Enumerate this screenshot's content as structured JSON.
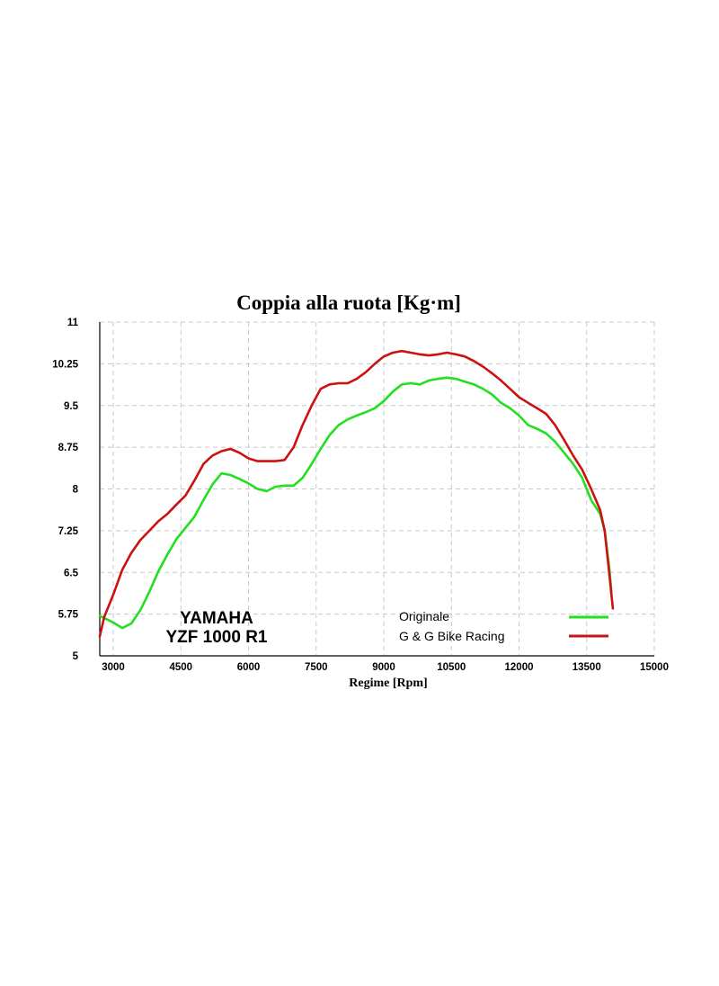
{
  "chart_data": {
    "type": "line",
    "title": "Coppia alla ruota  [Kg·m]",
    "xlabel": "Regime [Rpm]",
    "ylabel": "",
    "xlim": [
      2700,
      15000
    ],
    "ylim": [
      5,
      11
    ],
    "x_ticks": [
      3000,
      4500,
      6000,
      7500,
      9000,
      10500,
      12000,
      13500,
      15000
    ],
    "y_ticks": [
      11,
      10.25,
      9.5,
      8.75,
      8,
      7.25,
      6.5,
      5.75,
      5
    ],
    "y_tick_labels": [
      "11",
      "10.25",
      "9.5",
      "8.75",
      "8",
      "7.25",
      "6.5",
      "5.75",
      "5"
    ],
    "grid": true,
    "legend_position": "bottom-right",
    "annotation": [
      "YAMAHA",
      "YZF 1000 R1"
    ],
    "series": [
      {
        "name": "Originale",
        "color": "#22e01f",
        "x": [
          2700,
          3000,
          3200,
          3400,
          3600,
          3800,
          4000,
          4200,
          4400,
          4600,
          4800,
          5000,
          5200,
          5400,
          5600,
          5800,
          6000,
          6200,
          6400,
          6600,
          6800,
          7000,
          7200,
          7400,
          7600,
          7800,
          8000,
          8200,
          8400,
          8600,
          8800,
          9000,
          9200,
          9400,
          9600,
          9800,
          10000,
          10200,
          10400,
          10600,
          10800,
          11000,
          11200,
          11400,
          11600,
          11800,
          12000,
          12200,
          12400,
          12600,
          12800,
          13000,
          13200,
          13400,
          13600,
          13800,
          13900,
          14000,
          14050
        ],
        "values": [
          5.72,
          5.6,
          5.5,
          5.58,
          5.82,
          6.15,
          6.52,
          6.82,
          7.1,
          7.3,
          7.5,
          7.8,
          8.08,
          8.28,
          8.25,
          8.18,
          8.1,
          8.0,
          7.96,
          8.04,
          8.06,
          8.06,
          8.2,
          8.45,
          8.72,
          8.97,
          9.15,
          9.25,
          9.32,
          9.38,
          9.45,
          9.58,
          9.75,
          9.88,
          9.9,
          9.88,
          9.95,
          9.98,
          10.0,
          9.98,
          9.93,
          9.88,
          9.8,
          9.7,
          9.55,
          9.45,
          9.32,
          9.15,
          9.08,
          9.0,
          8.85,
          8.65,
          8.45,
          8.2,
          7.8,
          7.55,
          7.25,
          6.6,
          6.15
        ]
      },
      {
        "name": "G & G Bike Racing",
        "color": "#cc1111",
        "x": [
          2700,
          2800,
          3000,
          3200,
          3400,
          3600,
          3800,
          4000,
          4200,
          4400,
          4600,
          4800,
          5000,
          5200,
          5400,
          5600,
          5800,
          6000,
          6200,
          6400,
          6600,
          6800,
          7000,
          7200,
          7400,
          7600,
          7800,
          8000,
          8200,
          8400,
          8600,
          8800,
          9000,
          9200,
          9400,
          9600,
          9800,
          10000,
          10200,
          10400,
          10600,
          10800,
          11000,
          11200,
          11400,
          11600,
          11800,
          12000,
          12200,
          12400,
          12600,
          12800,
          13000,
          13200,
          13400,
          13600,
          13800,
          13900,
          14000,
          14080
        ],
        "values": [
          5.35,
          5.7,
          6.1,
          6.55,
          6.85,
          7.08,
          7.25,
          7.42,
          7.55,
          7.72,
          7.88,
          8.15,
          8.45,
          8.6,
          8.68,
          8.72,
          8.65,
          8.55,
          8.5,
          8.5,
          8.5,
          8.52,
          8.75,
          9.15,
          9.5,
          9.8,
          9.88,
          9.9,
          9.9,
          9.98,
          10.1,
          10.25,
          10.38,
          10.45,
          10.48,
          10.45,
          10.42,
          10.4,
          10.42,
          10.45,
          10.42,
          10.38,
          10.3,
          10.2,
          10.08,
          9.95,
          9.8,
          9.65,
          9.55,
          9.45,
          9.35,
          9.15,
          8.88,
          8.6,
          8.35,
          8.0,
          7.62,
          7.25,
          6.5,
          5.85
        ]
      }
    ]
  }
}
